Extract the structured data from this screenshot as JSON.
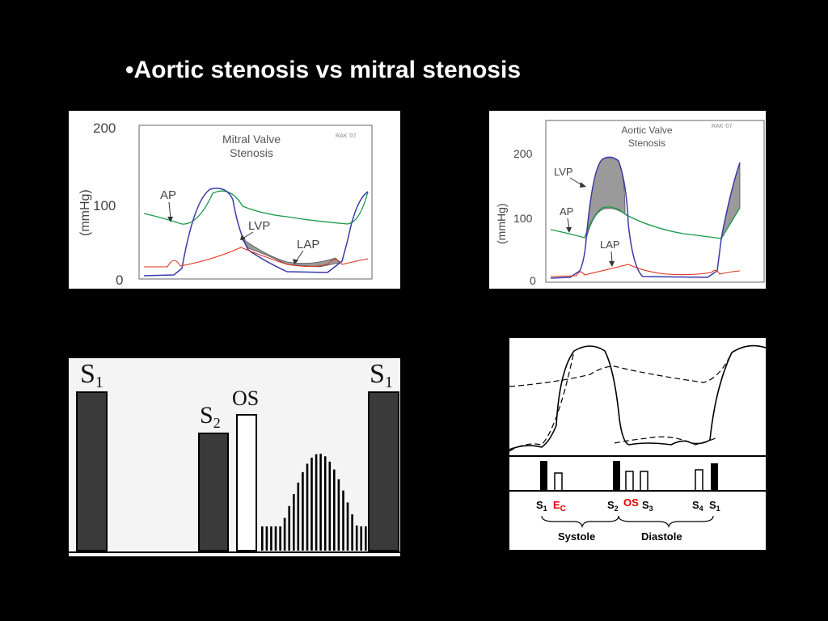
{
  "slide": {
    "title": "•Aortic stenosis  vs  mitral stenosis"
  },
  "mitral_chart": {
    "title_line1": "Mitral Valve",
    "title_line2": "Stenosis",
    "credit": "RAK '07",
    "ylabel": "(mmHg)",
    "ticks": [
      "200",
      "100",
      "0"
    ],
    "labels": {
      "ap": "AP",
      "lvp": "LVP",
      "lap": "LAP"
    },
    "colors": {
      "ap": "#1a9a4a",
      "lvp": "#3a3aa8",
      "lap": "#e03020",
      "gradient_fill": "#9a9a9a"
    }
  },
  "aortic_chart": {
    "title_line1": "Aortic Valve",
    "title_line2": "Stenosis",
    "credit": "RAK '07",
    "ylabel": "(mmHg)",
    "ticks": [
      "200",
      "100",
      "0"
    ],
    "labels": {
      "lvp": "LVP",
      "ap": "AP",
      "lap": "LAP"
    },
    "colors": {
      "ap": "#1a9a4a",
      "lvp": "#3a3aa8",
      "lap": "#e03020",
      "gradient_fill": "#9a9a9a"
    }
  },
  "heart_sounds": {
    "s1_left": {
      "letter": "S",
      "sub": "1"
    },
    "s2": {
      "letter": "S",
      "sub": "2"
    },
    "os": "OS",
    "s1_right": {
      "letter": "S",
      "sub": "1"
    }
  },
  "phonocardiogram": {
    "sounds": [
      {
        "letter": "S",
        "sub": "1",
        "color": "#000000"
      },
      {
        "letter": "E",
        "sub": "C",
        "color": "#e00000"
      },
      {
        "letter": "S",
        "sub": "2",
        "color": "#000000"
      },
      {
        "letter": "OS",
        "sub": "",
        "color": "#e00000"
      },
      {
        "letter": "S",
        "sub": "3",
        "color": "#000000"
      },
      {
        "letter": "S",
        "sub": "4",
        "color": "#000000"
      },
      {
        "letter": "S",
        "sub": "1",
        "color": "#000000"
      }
    ],
    "phases": [
      "Systole",
      "Diastole"
    ]
  }
}
